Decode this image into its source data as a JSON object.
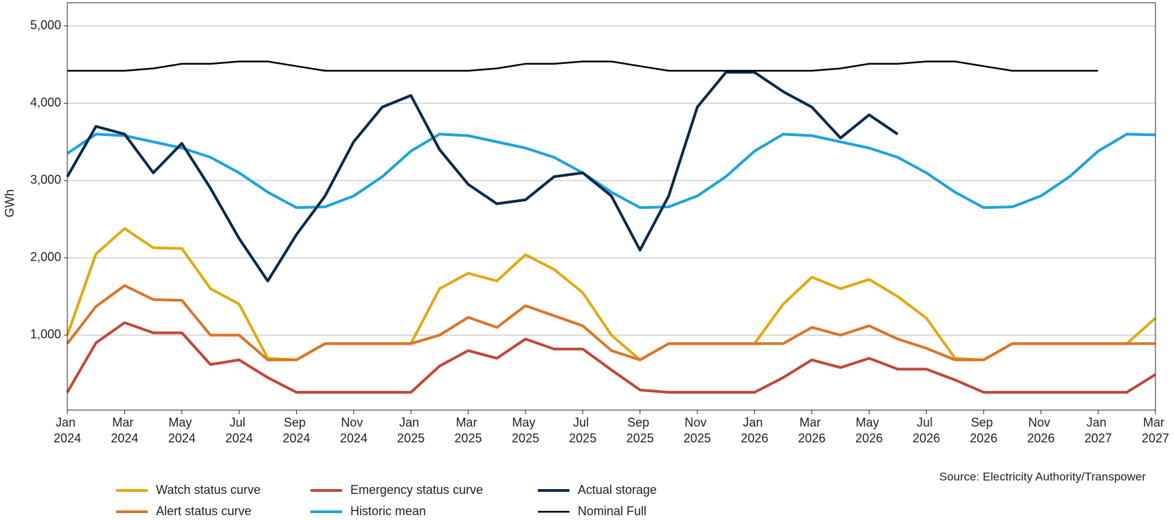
{
  "chart_data": {
    "type": "line",
    "y_label": "GWh",
    "source": "Source: Electricity Authority/Transpower",
    "x": [
      "2024-01",
      "2024-02",
      "2024-03",
      "2024-04",
      "2024-05",
      "2024-06",
      "2024-07",
      "2024-08",
      "2024-09",
      "2024-10",
      "2024-11",
      "2024-12",
      "2025-01",
      "2025-02",
      "2025-03",
      "2025-04",
      "2025-05",
      "2025-06",
      "2025-07",
      "2025-08",
      "2025-09",
      "2025-10",
      "2025-11",
      "2025-12",
      "2026-01",
      "2026-02",
      "2026-03",
      "2026-04",
      "2026-05",
      "2026-06",
      "2026-07",
      "2026-08",
      "2026-09",
      "2026-10",
      "2026-11",
      "2026-12",
      "2027-01",
      "2027-02",
      "2027-03"
    ],
    "xlim": [
      "2024-01",
      "2027-03"
    ],
    "xticks": [
      {
        "value": "2024-01",
        "label": "Jan 2024"
      },
      {
        "value": "2024-03",
        "label": "Mar 2024"
      },
      {
        "value": "2024-05",
        "label": "May 2024"
      },
      {
        "value": "2024-07",
        "label": "Jul 2024"
      },
      {
        "value": "2024-09",
        "label": "Sep 2024"
      },
      {
        "value": "2024-11",
        "label": "Nov 2024"
      },
      {
        "value": "2025-01",
        "label": "Jan 2025"
      },
      {
        "value": "2025-03",
        "label": "Mar 2025"
      },
      {
        "value": "2025-05",
        "label": "May 2025"
      },
      {
        "value": "2025-07",
        "label": "Jul 2025"
      },
      {
        "value": "2025-09",
        "label": "Sep 2025"
      },
      {
        "value": "2025-11",
        "label": "Nov 2025"
      },
      {
        "value": "2026-01",
        "label": "Jan 2026"
      },
      {
        "value": "2026-03",
        "label": "Mar 2026"
      },
      {
        "value": "2026-05",
        "label": "May 2026"
      },
      {
        "value": "2026-07",
        "label": "Jul 2026"
      },
      {
        "value": "2026-09",
        "label": "Sep 2026"
      },
      {
        "value": "2026-11",
        "label": "Nov 2026"
      },
      {
        "value": "2027-01",
        "label": "Jan 2027"
      },
      {
        "value": "2027-03",
        "label": "Mar 2027"
      }
    ],
    "ylim": [
      30,
      5300
    ],
    "yticks": [
      {
        "value": 1000,
        "label": "1,000"
      },
      {
        "value": 2000,
        "label": "2,000"
      },
      {
        "value": 3000,
        "label": "3,000"
      },
      {
        "value": 4000,
        "label": "4,000"
      },
      {
        "value": 5000,
        "label": "5,000"
      }
    ],
    "grid": true,
    "series": [
      {
        "name": "Watch status curve",
        "color": "#e0aa14",
        "values": [
          1000,
          2050,
          2380,
          2130,
          2120,
          1600,
          1400,
          700,
          680,
          890,
          890,
          890,
          890,
          1600,
          1800,
          1700,
          2040,
          1850,
          1550,
          1000,
          680,
          890,
          890,
          890,
          890,
          1400,
          1750,
          1600,
          1720,
          1500,
          1220,
          700,
          680,
          890,
          890,
          890,
          890,
          890,
          1220
        ]
      },
      {
        "name": "Alert status curve",
        "color": "#d9762a",
        "values": [
          890,
          1370,
          1640,
          1460,
          1450,
          1000,
          1000,
          680,
          680,
          890,
          890,
          890,
          890,
          1000,
          1230,
          1100,
          1380,
          1250,
          1120,
          800,
          680,
          890,
          890,
          890,
          890,
          890,
          1100,
          1000,
          1120,
          950,
          830,
          680,
          680,
          890,
          890,
          890,
          890,
          890,
          890
        ]
      },
      {
        "name": "Emergency status curve",
        "color": "#c0483a",
        "values": [
          260,
          900,
          1160,
          1030,
          1030,
          620,
          680,
          450,
          260,
          260,
          260,
          260,
          260,
          600,
          800,
          700,
          950,
          820,
          820,
          550,
          290,
          260,
          260,
          260,
          260,
          450,
          680,
          580,
          700,
          560,
          560,
          420,
          260,
          260,
          260,
          260,
          260,
          260,
          490
        ]
      },
      {
        "name": "Historic mean",
        "color": "#1ea3dc",
        "values": [
          3350,
          3600,
          3580,
          3500,
          3420,
          3300,
          3100,
          2850,
          2650,
          2660,
          2800,
          3050,
          3380,
          3600,
          3580,
          3500,
          3420,
          3300,
          3100,
          2850,
          2650,
          2660,
          2800,
          3050,
          3380,
          3600,
          3580,
          3500,
          3420,
          3300,
          3100,
          2850,
          2650,
          2660,
          2800,
          3050,
          3380,
          3600,
          3590
        ]
      },
      {
        "name": "Actual storage",
        "color": "#0a2a4a",
        "values": [
          3050,
          3700,
          3600,
          3100,
          3480,
          2900,
          2250,
          1700,
          2300,
          2800,
          3500,
          3950,
          4100,
          3400,
          2950,
          2700,
          2750,
          3050,
          3100,
          2800,
          2100,
          2800,
          3950,
          4400,
          4400,
          4150,
          3950,
          3550,
          3850,
          3600,
          null,
          null,
          null,
          null,
          null,
          null,
          null,
          null,
          null
        ]
      },
      {
        "name": "Nominal Full",
        "color": "#000000",
        "values": [
          4420,
          4420,
          4420,
          4450,
          4510,
          4510,
          4540,
          4540,
          4480,
          4420,
          4420,
          4420,
          4420,
          4420,
          4420,
          4450,
          4510,
          4510,
          4540,
          4540,
          4480,
          4420,
          4420,
          4420,
          4420,
          4420,
          4420,
          4450,
          4510,
          4510,
          4540,
          4540,
          4480,
          4420,
          4420,
          4420,
          4420,
          null,
          null
        ]
      }
    ]
  }
}
